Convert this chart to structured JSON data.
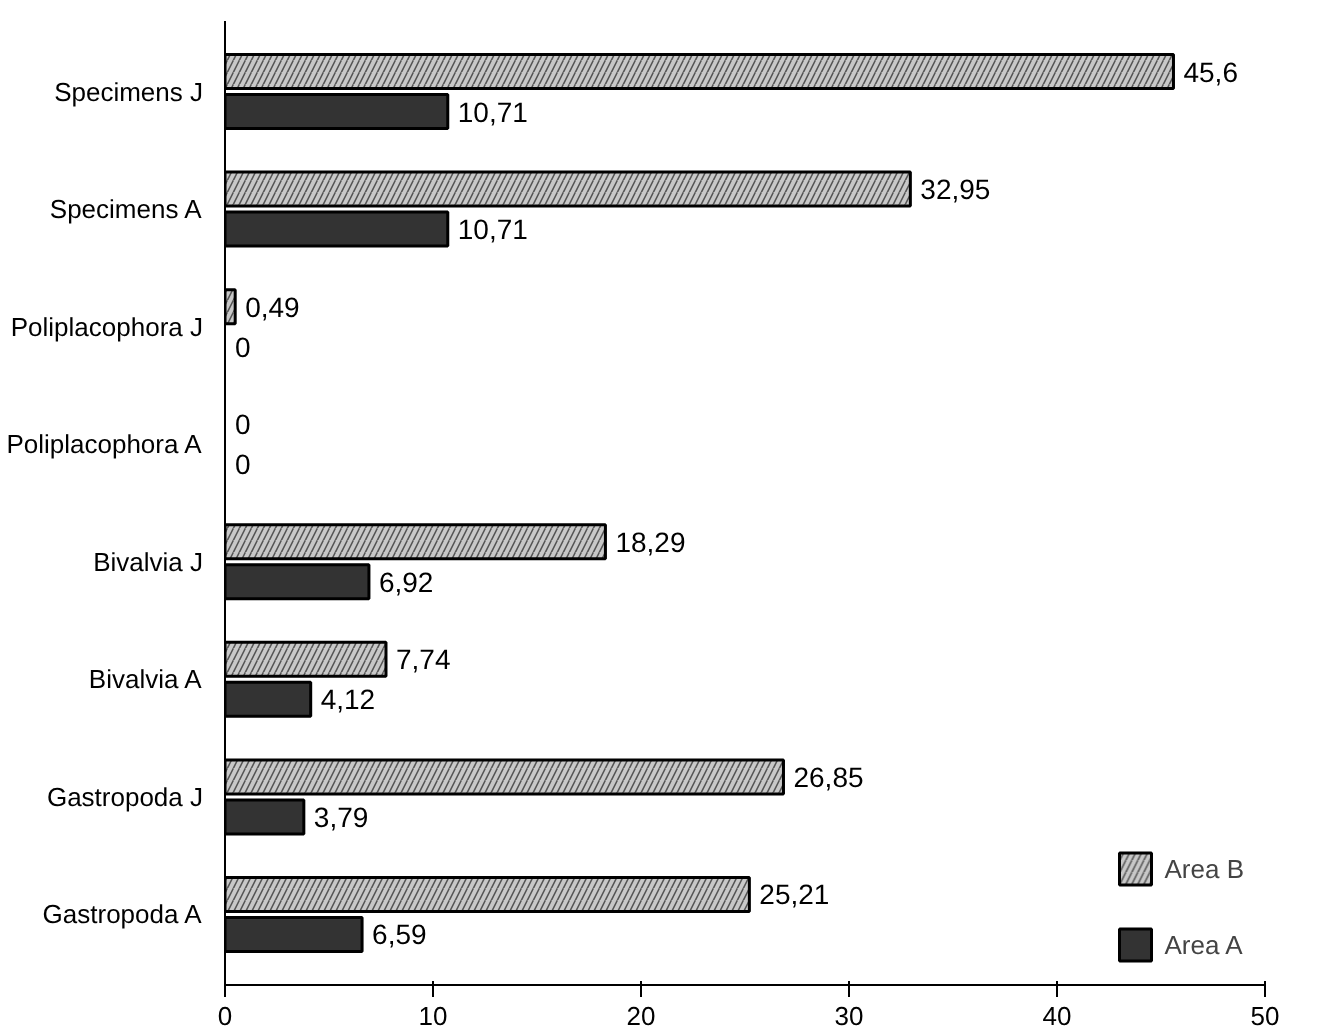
{
  "chart_data": {
    "type": "bar",
    "orientation": "horizontal",
    "categories": [
      "Specimens J",
      "Specimens A",
      "Poliplacophora J",
      "Poliplacophora A",
      "Bivalvia J",
      "Bivalvia A",
      "Gastropoda J",
      "Gastropoda A"
    ],
    "series": [
      {
        "name": "Area B",
        "color": "#c8c8c8",
        "values": [
          45.6,
          32.95,
          0.49,
          0,
          18.29,
          7.74,
          26.85,
          25.21
        ],
        "value_labels": [
          "45,6",
          "32,95",
          "0,49",
          "0",
          "18,29",
          "7,74",
          "26,85",
          "25,21"
        ]
      },
      {
        "name": "Area A",
        "color": "#333333",
        "values": [
          10.71,
          10.71,
          0,
          0,
          6.92,
          4.12,
          3.79,
          6.59
        ],
        "value_labels": [
          "10,71",
          "10,71",
          "0",
          "0",
          "6,92",
          "4,12",
          "3,79",
          "6,59"
        ]
      }
    ],
    "xlim": [
      0,
      50
    ],
    "xticks": [
      0,
      10,
      20,
      30,
      40,
      50
    ],
    "grid": false,
    "legend": "bottom right"
  }
}
